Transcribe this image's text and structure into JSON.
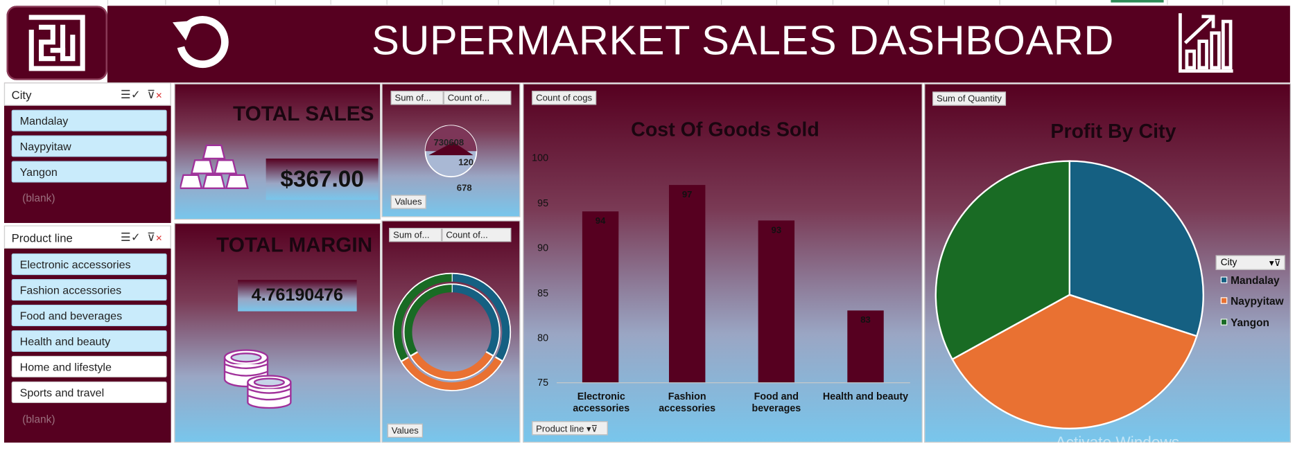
{
  "header": {
    "title": "SUPERMARKET SALES DASHBOARD",
    "logo_icon": "maze-logo-icon",
    "refresh_icon": "refresh-icon",
    "chart_icon": "growth-chart-icon"
  },
  "colors": {
    "maroon": "#560020",
    "sky": "#78c6ec",
    "mandalay": "#156082",
    "naypyitaw": "#e97132",
    "yangon": "#196b24",
    "slicer_selected": "#c9ebfb"
  },
  "city_slicer": {
    "title": "City",
    "items": [
      {
        "label": "Mandalay",
        "selected": true
      },
      {
        "label": "Naypyitaw",
        "selected": true
      },
      {
        "label": "Yangon",
        "selected": true
      }
    ],
    "blank": "(blank)"
  },
  "product_slicer": {
    "title": "Product line",
    "items": [
      {
        "label": "Electronic accessories",
        "selected": true
      },
      {
        "label": "Fashion accessories",
        "selected": true
      },
      {
        "label": "Food and beverages",
        "selected": true
      },
      {
        "label": "Health and beauty",
        "selected": true
      },
      {
        "label": "Home and lifestyle",
        "selected": false
      },
      {
        "label": "Sports and travel",
        "selected": false
      }
    ],
    "blank": "(blank)"
  },
  "total_sales": {
    "title": "TOTAL SALES",
    "value": "$367.00",
    "icon": "gold-bars-icon"
  },
  "total_margin": {
    "title": "TOTAL MARGIN",
    "value": "4.76190476",
    "icon": "coins-icon"
  },
  "mini_pie": {
    "btn1": "Sum of...",
    "btn2": "Count of...",
    "values_btn": "Values",
    "overlap_label": "730608",
    "label_120": "120",
    "label_678": "678"
  },
  "donut": {
    "btn1": "Sum of...",
    "btn2": "Count of...",
    "values_btn": "Values",
    "slices": [
      {
        "city": "Mandalay",
        "share": 0.333,
        "color": "#156082"
      },
      {
        "city": "Naypyitaw",
        "share": 0.333,
        "color": "#e97132"
      },
      {
        "city": "Yangon",
        "share": 0.334,
        "color": "#196b24"
      }
    ]
  },
  "cogs_chart": {
    "field_btn": "Count of cogs",
    "axis_btn": "Product line",
    "chart_data": {
      "type": "bar",
      "title": "Cost Of Goods Sold",
      "categories": [
        "Electronic accessories",
        "Fashion accessories",
        "Food and beverages",
        "Health and beauty"
      ],
      "values": [
        94,
        97,
        93,
        83
      ],
      "ylim": [
        75,
        100
      ],
      "yticks": [
        "100",
        "95",
        "90",
        "85",
        "80",
        "75"
      ],
      "xlabel": "",
      "ylabel": ""
    }
  },
  "profit_chart": {
    "field_btn": "Sum of Quantity",
    "legend_title": "City",
    "chart_data": {
      "type": "pie",
      "title": "Profit By City",
      "categories": [
        "Mandalay",
        "Naypyitaw",
        "Yangon"
      ],
      "values": [
        0.3,
        0.37,
        0.33
      ],
      "colors": [
        "#156082",
        "#e97132",
        "#196b24"
      ],
      "legend_position": "right"
    }
  },
  "watermark": "Activate Windows"
}
